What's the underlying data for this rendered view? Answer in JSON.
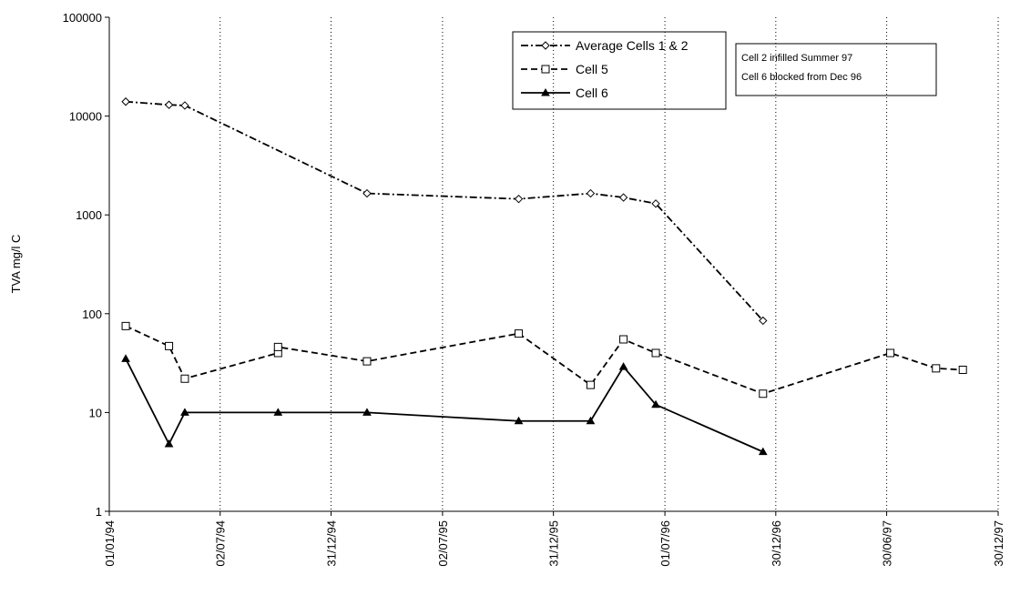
{
  "chart_data": {
    "type": "line",
    "ylabel": "TVA mg/l C",
    "yscale": "log",
    "grid": "x",
    "legend": "top-center",
    "annotations": [
      "Cell 2 infilled Summer 97",
      "Cell 6 blocked from Dec 96"
    ],
    "xlim": [
      "1994-01-01",
      "1997-12-30"
    ],
    "xticks": [
      {
        "value": "1994-01-01",
        "label": "01/01/94"
      },
      {
        "value": "1994-07-02",
        "label": "02/07/94"
      },
      {
        "value": "1994-12-31",
        "label": "31/12/94"
      },
      {
        "value": "1995-07-02",
        "label": "02/07/95"
      },
      {
        "value": "1995-12-31",
        "label": "31/12/95"
      },
      {
        "value": "1996-07-01",
        "label": "01/07/96"
      },
      {
        "value": "1996-12-30",
        "label": "30/12/96"
      },
      {
        "value": "1997-06-30",
        "label": "30/06/97"
      },
      {
        "value": "1997-12-30",
        "label": "30/12/97"
      }
    ],
    "ylim": [
      1,
      100000
    ],
    "yticks": [
      1,
      10,
      100,
      1000,
      10000,
      100000
    ],
    "series": [
      {
        "name": "Average Cells 1 & 2",
        "color": "#000000",
        "marker": "diamond",
        "dash": "dashdot",
        "x": [
          "1994-01-28",
          "1994-04-09",
          "1994-05-05",
          "1995-02-28",
          "1995-11-04",
          "1996-03-01",
          "1996-04-24",
          "1996-06-16",
          "1996-12-09"
        ],
        "values": [
          14000,
          13000,
          12800,
          1650,
          1450,
          1650,
          1500,
          1300,
          85
        ]
      },
      {
        "name": "Cell 5",
        "color": "#000000",
        "marker": "square",
        "dash": "dashed",
        "x": [
          "1994-01-28",
          "1994-04-09",
          "1994-05-05",
          "1994-10-05",
          "1994-10-05",
          "1995-02-28",
          "1995-11-04",
          "1996-03-01",
          "1996-04-24",
          "1996-06-16",
          "1996-12-09",
          "1997-07-06",
          "1997-09-19",
          "1997-11-02"
        ],
        "values": [
          75,
          47,
          22,
          40,
          46,
          33,
          63,
          19,
          55,
          40,
          15.5,
          40,
          28,
          27
        ]
      },
      {
        "name": "Cell 6",
        "color": "#000000",
        "marker": "triangle",
        "dash": "solid",
        "x": [
          "1994-01-28",
          "1994-04-09",
          "1994-05-05",
          "1994-10-05",
          "1995-02-28",
          "1995-11-04",
          "1996-03-01",
          "1996-04-24",
          "1996-06-16",
          "1996-12-09"
        ],
        "values": [
          35,
          4.8,
          10,
          10,
          10,
          8.2,
          8.2,
          29,
          12,
          4
        ]
      }
    ]
  }
}
